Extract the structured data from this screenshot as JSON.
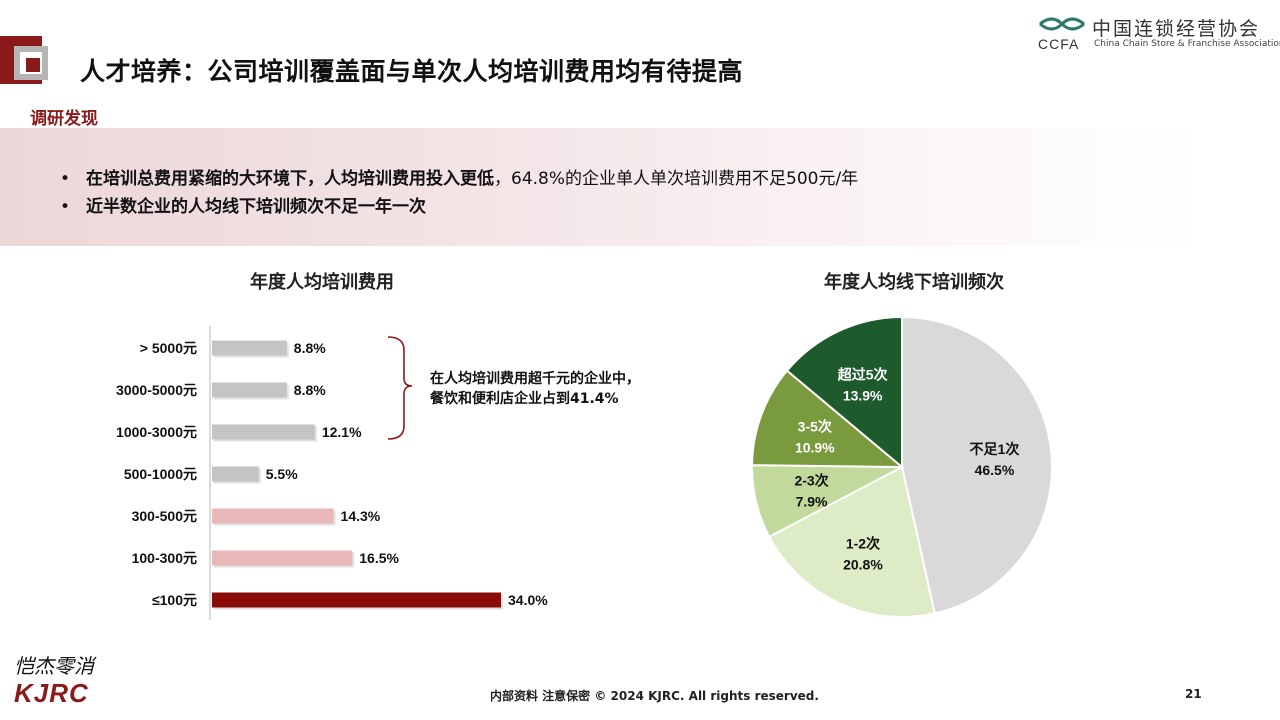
{
  "header": {
    "title": "人才培养：公司培训覆盖面与单次人均培训费用均有待提高",
    "logo_cn": "中国连锁经营协会",
    "logo_abbr": "CCFA",
    "logo_en": "China Chain Store & Franchise Association"
  },
  "section_label": "调研发现",
  "findings": [
    {
      "bullet": "•",
      "bold": "在培训总费用紧缩的大环境下，人均培训费用投入更低",
      "rest": "，64.8%的企业单人单次培训费用不足500元/年"
    },
    {
      "bullet": "•",
      "bold": "近半数企业的人均线下培训频次不足一年一次",
      "rest": ""
    }
  ],
  "annotation": [
    "在人均培训费用超千元的企业中，",
    "餐饮和便利店企业占到41.4%"
  ],
  "chart_data": [
    {
      "type": "bar",
      "orientation": "horizontal",
      "title": "年度人均培训费用",
      "categories": [
        "> 5000元",
        "3000-5000元",
        "1000-3000元",
        "500-1000元",
        "300-500元",
        "100-300元",
        "≤100元"
      ],
      "values": [
        8.8,
        8.8,
        12.1,
        5.5,
        14.3,
        16.5,
        34.0
      ],
      "labels": [
        "8.8%",
        "8.8%",
        "12.1%",
        "5.5%",
        "14.3%",
        "16.5%",
        "34.0%"
      ],
      "colors": [
        "#c4c4c4",
        "#c4c4c4",
        "#c4c4c4",
        "#c4c4c4",
        "#e8b8b8",
        "#e8b8b8",
        "#8b0a0a"
      ],
      "unit": "%"
    },
    {
      "type": "pie",
      "title": "年度人均线下培训频次",
      "slices": [
        {
          "label": "不足1次",
          "value": 46.5,
          "pct": "46.5%",
          "color": "#d9d9d9",
          "text_color": "#111111"
        },
        {
          "label": "1-2次",
          "value": 20.8,
          "pct": "20.8%",
          "color": "#deebc7",
          "text_color": "#111111"
        },
        {
          "label": "2-3次",
          "value": 7.9,
          "pct": "7.9%",
          "color": "#c2d99c",
          "text_color": "#111111"
        },
        {
          "label": "3-5次",
          "value": 10.9,
          "pct": "10.9%",
          "color": "#7a9a3e",
          "text_color": "#ffffff"
        },
        {
          "label": "超过5次",
          "value": 13.9,
          "pct": "13.9%",
          "color": "#1d5a2c",
          "text_color": "#ffffff"
        }
      ]
    }
  ],
  "footer": {
    "text": "内部资料 注意保密 © 2024 KJRC. All rights reserved.",
    "page": "21",
    "brand_cn": "恺杰零消",
    "brand_en": "KJRC"
  },
  "colors": {
    "accent": "#8b1a1a"
  }
}
